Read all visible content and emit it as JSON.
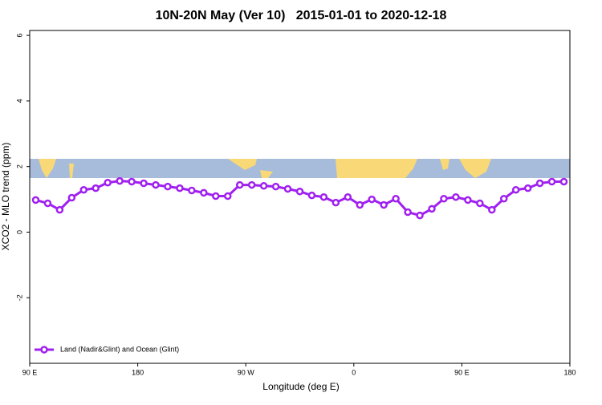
{
  "chart_data": {
    "type": "line",
    "title": "10N-20N May (Ver 10)   2015-01-01 to 2020-12-18",
    "xlabel": "Longitude (deg E)",
    "ylabel": "XCO2 - MLO trend (ppm)",
    "x": [
      95,
      105,
      115,
      125,
      135,
      145,
      155,
      165,
      175,
      185,
      195,
      205,
      215,
      225,
      235,
      245,
      255,
      265,
      275,
      285,
      295,
      305,
      315,
      325,
      335,
      345,
      355,
      365,
      375,
      385,
      395,
      405,
      415,
      425,
      435,
      445,
      455,
      465,
      475,
      485,
      495,
      505,
      515,
      525,
      535
    ],
    "series": [
      {
        "name": "Land (Nadir&Glint) and Ocean (Glint)",
        "color": "#a020f0",
        "values": [
          0.98,
          0.88,
          0.68,
          1.05,
          1.29,
          1.34,
          1.51,
          1.56,
          1.54,
          1.49,
          1.44,
          1.39,
          1.34,
          1.27,
          1.2,
          1.1,
          1.1,
          1.44,
          1.44,
          1.41,
          1.39,
          1.32,
          1.24,
          1.12,
          1.07,
          0.9,
          1.07,
          0.83,
          1.0,
          0.83,
          1.02,
          0.61,
          0.51,
          0.71,
          1.02,
          1.07,
          0.98,
          0.88,
          0.68,
          1.02,
          1.29,
          1.34,
          1.49,
          1.54,
          1.54
        ]
      }
    ],
    "xlim": [
      90,
      540
    ],
    "xticks": [
      {
        "value": 90,
        "label": "90 E"
      },
      180,
      {
        "value": 270,
        "label": "90 W"
      },
      {
        "value": 360,
        "label": "0"
      },
      {
        "value": 450,
        "label": "90 E"
      },
      {
        "value": 540,
        "label": "180"
      }
    ],
    "ylim": [
      -4,
      6.15
    ],
    "yticks": [
      -2,
      0,
      2,
      4,
      6
    ],
    "legend": "bottom-left"
  }
}
